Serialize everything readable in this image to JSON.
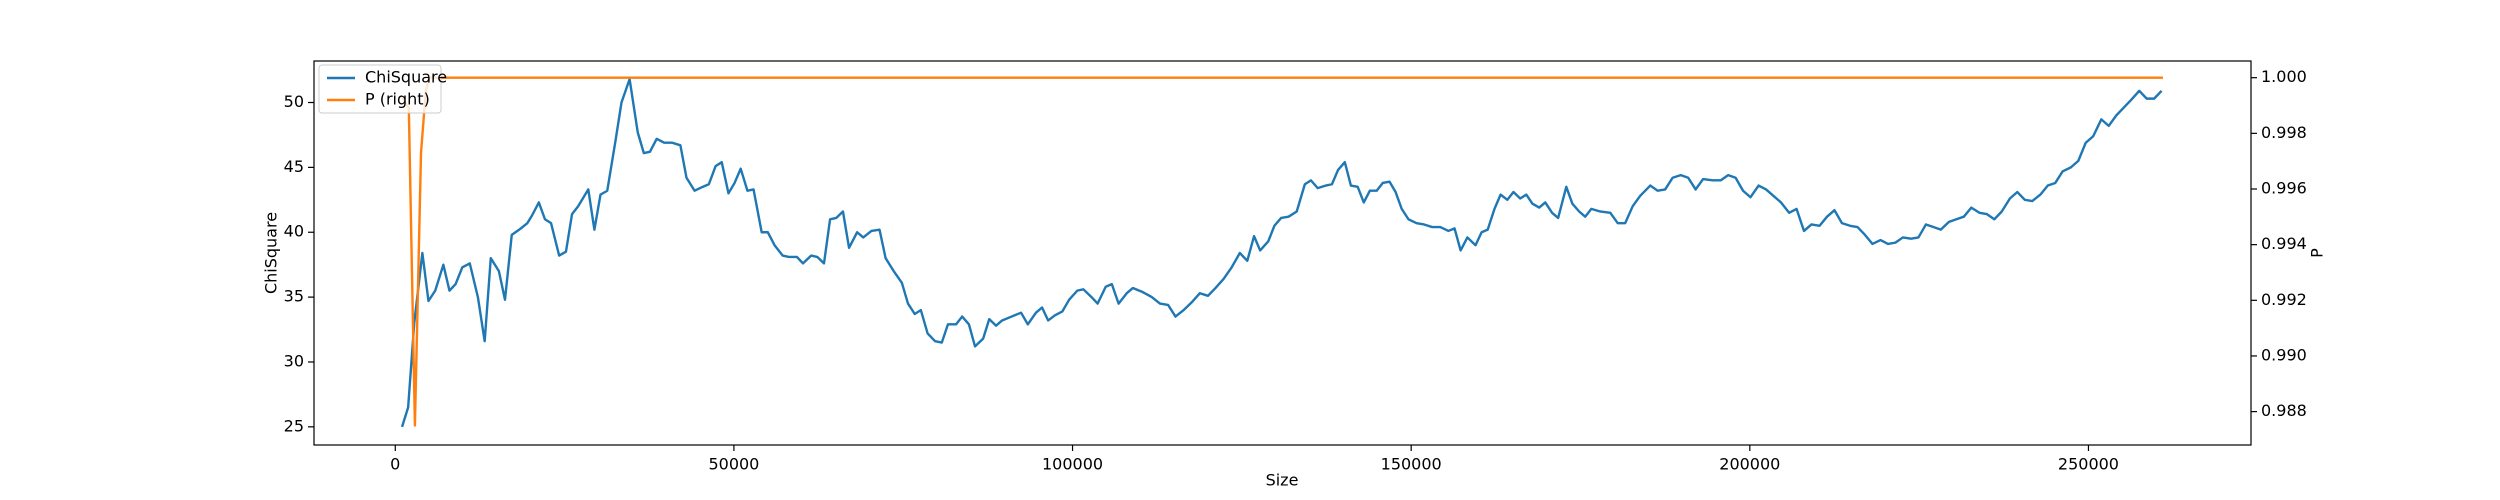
{
  "chart_data": {
    "type": "line",
    "xlabel": "Size",
    "ylabel": "ChiSquare",
    "y2label": "P",
    "xlim": [
      -12000,
      274000
    ],
    "ylim": [
      23.6,
      53.2
    ],
    "y2lim": [
      0.9868,
      1.0006
    ],
    "xticks": [
      0,
      50000,
      100000,
      150000,
      200000,
      250000
    ],
    "yticks": [
      25,
      30,
      35,
      40,
      45,
      50
    ],
    "y2ticks": [
      {
        "value": 0.988,
        "label": "0.988"
      },
      {
        "value": 0.99,
        "label": "0.990"
      },
      {
        "value": 0.992,
        "label": "0.992"
      },
      {
        "value": 0.994,
        "label": "0.994"
      },
      {
        "value": 0.996,
        "label": "0.996"
      },
      {
        "value": 0.998,
        "label": "0.998"
      },
      {
        "value": 1,
        "label": "1.000"
      }
    ],
    "legend": "upper left",
    "series": [
      {
        "name": "ChiSquare",
        "color": "#1f77b4",
        "axis": "y",
        "x": [
          1000,
          1900,
          2800,
          4000,
          4900,
          5900,
          7100,
          8000,
          8900,
          9900,
          11000,
          12200,
          13200,
          14100,
          15300,
          16200,
          17200,
          18300,
          19500,
          20200,
          21200,
          22100,
          23000,
          24200,
          25200,
          26100,
          27000,
          28500,
          29400,
          30300,
          31300,
          32500,
          33400,
          34600,
          35800,
          36700,
          37600,
          38600,
          39700,
          40900,
          42100,
          43000,
          44200,
          45400,
          46300,
          47300,
          48200,
          49200,
          50100,
          51000,
          52000,
          52900,
          54100,
          55000,
          56000,
          57200,
          58100,
          59300,
          60200,
          61400,
          62300,
          63300,
          64200,
          65100,
          66100,
          67000,
          68200,
          69100,
          70300,
          71500,
          72400,
          73600,
          74800,
          75700,
          76700,
          77600,
          78600,
          79700,
          80700,
          81600,
          82800,
          83700,
          84700,
          85600,
          86800,
          87700,
          88700,
          89600,
          91000,
          92400,
          93400,
          94600,
          95500,
          96400,
          97400,
          98500,
          99500,
          100700,
          101600,
          102800,
          103700,
          104900,
          105800,
          106800,
          108000,
          108900,
          110300,
          111700,
          112900,
          114100,
          115200,
          116400,
          117600,
          118800,
          120000,
          121100,
          122300,
          123500,
          124700,
          125800,
          126800,
          127700,
          128900,
          129800,
          130800,
          131900,
          133100,
          134300,
          135200,
          136200,
          137400,
          138300,
          139200,
          140200,
          141100,
          142100,
          143000,
          143900,
          144900,
          145800,
          146800,
          147700,
          148600,
          149600,
          150800,
          151900,
          153100,
          154300,
          155500,
          156400,
          157300,
          158300,
          159500,
          160400,
          161300,
          162300,
          163200,
          164200,
          165100,
          166100,
          167000,
          167900,
          168900,
          169800,
          170800,
          171700,
          172900,
          173800,
          174800,
          175700,
          176600,
          177900,
          179400,
          180500,
          181600,
          182700,
          183800,
          185300,
          186400,
          187500,
          188600,
          189800,
          190900,
          192000,
          193100,
          194500,
          195700,
          196800,
          197900,
          199000,
          200100,
          201300,
          202400,
          203500,
          204600,
          205800,
          206900,
          208000,
          209100,
          210300,
          211400,
          212500,
          213600,
          214800,
          215900,
          217000,
          218100,
          219300,
          220400,
          221500,
          222600,
          223800,
          224900,
          226000,
          227100,
          228200,
          229400,
          230500,
          231600,
          232700,
          233900,
          235000,
          236100,
          237200,
          238400,
          239500,
          240600,
          241700,
          242900,
          244000,
          245100,
          246200,
          247400,
          248500,
          249600,
          250700,
          251900,
          253000,
          254100,
          255200,
          256300,
          257500,
          258600,
          259700,
          260800
        ],
        "values": [
          25.0,
          26.5,
          33,
          38.4,
          34.7,
          35.5,
          37.5,
          35.5,
          36,
          37.3,
          37.6,
          35,
          31.6,
          38,
          37,
          34.8,
          39.8,
          40.2,
          40.7,
          41.3,
          42.3,
          41,
          40.7,
          38.2,
          38.5,
          41.4,
          42,
          43.3,
          40.2,
          42.9,
          43.2,
          47,
          50,
          51.8,
          47.7,
          46.1,
          46.2,
          47.2,
          46.9,
          46.9,
          46.7,
          44.2,
          43.2,
          43.5,
          43.7,
          45.1,
          45.4,
          43,
          43.8,
          44.9,
          43.2,
          43.3,
          40,
          40,
          39,
          38.2,
          38.1,
          38.1,
          37.6,
          38.2,
          38.1,
          37.6,
          41,
          41.1,
          41.6,
          38.8,
          40,
          39.6,
          40.1,
          40.2,
          38,
          37,
          36.1,
          34.5,
          33.7,
          34,
          32.2,
          31.6,
          31.5,
          32.9,
          32.9,
          33.5,
          32.9,
          31.2,
          31.8,
          33.3,
          32.8,
          33.2,
          33.5,
          33.8,
          32.9,
          33.8,
          34.2,
          33.2,
          33.6,
          33.9,
          34.8,
          35.5,
          35.6,
          35,
          34.5,
          35.8,
          36,
          34.5,
          35.3,
          35.7,
          35.4,
          35,
          34.5,
          34.4,
          33.5,
          34,
          34.6,
          35.3,
          35.1,
          35.7,
          36.4,
          37.3,
          38.4,
          37.8,
          39.7,
          38.6,
          39.3,
          40.5,
          41.1,
          41.2,
          41.6,
          43.7,
          44,
          43.4,
          43.6,
          43.7,
          44.8,
          45.4,
          43.6,
          43.5,
          42.3,
          43.2,
          43.2,
          43.8,
          43.9,
          43.1,
          41.8,
          41,
          40.7,
          40.6,
          40.4,
          40.4,
          40.1,
          40.3,
          38.6,
          39.6,
          39,
          40,
          40.2,
          41.8,
          42.9,
          42.5,
          43.1,
          42.6,
          42.9,
          42.2,
          41.9,
          42.3,
          41.5,
          41.1,
          43.5,
          42.2,
          41.6,
          41.2,
          41.8,
          41.6,
          41.5,
          40.7,
          40.7,
          42,
          42.8,
          43.6,
          43.2,
          43.3,
          44.2,
          44.4,
          44.2,
          43.3,
          44.1,
          44,
          44,
          44.4,
          44.2,
          43.2,
          42.7,
          43.6,
          43.3,
          42.8,
          42.3,
          41.5,
          41.8,
          40.1,
          40.6,
          40.5,
          41.2,
          41.7,
          40.7,
          40.5,
          40.4,
          39.8,
          39.1,
          39.4,
          39.1,
          39.2,
          39.6,
          39.5,
          39.6,
          40.6,
          40.4,
          40.2,
          40.8,
          41,
          41.2,
          41.9,
          41.5,
          41.4,
          41,
          41.6,
          42.6,
          43.1,
          42.5,
          42.4,
          42.9,
          43.6,
          43.8,
          44.7,
          45,
          45.5,
          46.9,
          47.4,
          48.7,
          48.2,
          49,
          49.6,
          50.2,
          50.9,
          50.3,
          50.3,
          50.9
        ]
      },
      {
        "name": "P (right)",
        "color": "#ff7f0e",
        "axis": "y2",
        "x": [
          1000,
          2000,
          2900,
          3800,
          4500,
          5000,
          261000
        ],
        "values": [
          0.9993,
          0.9989,
          0.9875,
          0.9973,
          0.9995,
          1.0,
          1.0
        ]
      }
    ]
  }
}
